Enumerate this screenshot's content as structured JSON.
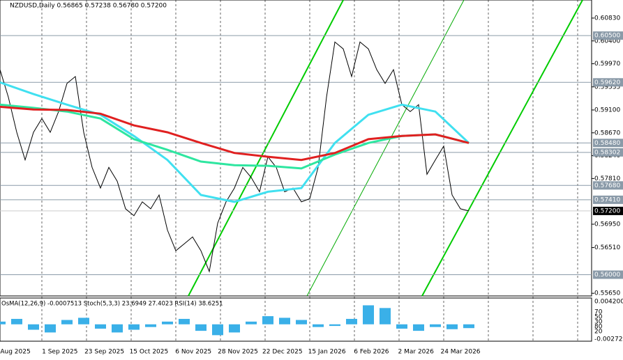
{
  "chart_data": {
    "type": "line",
    "title": "NZDUSD,Daily  0.56865 0.57238 0.56780 0.57200",
    "ylim": [
      0.556,
      0.6117
    ],
    "yticks": [
      {
        "value": 0.6083,
        "label": "0.60830"
      },
      {
        "value": 0.604,
        "label": "0.60400"
      },
      {
        "value": 0.5997,
        "label": "0.59970"
      },
      {
        "value": 0.59535,
        "label": "0.59535"
      },
      {
        "value": 0.591,
        "label": "0.59100"
      },
      {
        "value": 0.5867,
        "label": "0.58670"
      },
      {
        "value": 0.5824,
        "label": "0.58240"
      },
      {
        "value": 0.5781,
        "label": "0.57810"
      },
      {
        "value": 0.5695,
        "label": "0.56950"
      },
      {
        "value": 0.5651,
        "label": "0.56510"
      },
      {
        "value": 0.5565,
        "label": "0.55650"
      }
    ],
    "price_levels": [
      {
        "value": 0.605,
        "label": "0.60500"
      },
      {
        "value": 0.5962,
        "label": "0.59620"
      },
      {
        "value": 0.5848,
        "label": "0.58480"
      },
      {
        "value": 0.58302,
        "label": "0.58302"
      },
      {
        "value": 0.5768,
        "label": "0.57680"
      },
      {
        "value": 0.5741,
        "label": "0.57410"
      },
      {
        "value": 0.56,
        "label": "0.56000"
      }
    ],
    "last_price": {
      "value": 0.572,
      "label": "0.57200"
    },
    "x_labels": [
      "Aug 2025",
      "1 Sep 2025",
      "23 Sep 2025",
      "15 Oct 2025",
      "6 Nov 2025",
      "28 Nov 2025",
      "22 Dec 2025",
      "15 Jan 2026",
      "6 Feb 2026",
      "2 Mar 2026",
      "24 Mar 2026"
    ],
    "series": [
      {
        "name": "Close",
        "color": "#000000",
        "values": [
          0.5986,
          0.5934,
          0.5868,
          0.5816,
          0.5868,
          0.5894,
          0.5868,
          0.5907,
          0.596,
          0.5973,
          0.5868,
          0.5802,
          0.5763,
          0.5802,
          0.5776,
          0.5724,
          0.5711,
          0.5737,
          0.5724,
          0.575,
          0.5684,
          0.5645,
          0.5658,
          0.5671,
          0.5645,
          0.5606,
          0.5697,
          0.5737,
          0.5763,
          0.5802,
          0.5783,
          0.5756,
          0.5822,
          0.5802,
          0.5756,
          0.5763,
          0.5737,
          0.5743,
          0.5802,
          0.5934,
          0.6038,
          0.6025,
          0.5973,
          0.6038,
          0.6025,
          0.5986,
          0.596,
          0.5986,
          0.592,
          0.5907,
          0.592,
          0.5789,
          0.5816,
          0.5842,
          0.575,
          0.5724,
          0.572
        ]
      },
      {
        "name": "MA fast",
        "color": "#40e0f0",
        "values": [
          0.5962,
          0.594,
          0.592,
          0.5901,
          0.5861,
          0.5816,
          0.575,
          0.5737,
          0.5756,
          0.5763,
          0.5848,
          0.5901,
          0.592,
          0.5907,
          0.5848
        ]
      },
      {
        "name": "MA medium",
        "color": "#2ee6a0",
        "values": [
          0.592,
          0.5914,
          0.5907,
          0.5894,
          0.5855,
          0.5835,
          0.5813,
          0.5806,
          0.5805,
          0.58,
          0.5826,
          0.5848,
          0.5861,
          0.5864,
          0.5848
        ]
      },
      {
        "name": "MA slow",
        "color": "#e02020",
        "values": [
          0.5916,
          0.5911,
          0.591,
          0.5903,
          0.5881,
          0.5868,
          0.5848,
          0.5829,
          0.5822,
          0.5816,
          0.5829,
          0.5855,
          0.5861,
          0.5864,
          0.5848
        ]
      }
    ],
    "indicator": {
      "title": "OsMA(12,26,9) -0.0007513  Stoch(5,3,3) 23.6949 27.4023  RSI(14) 38.6251",
      "ylim": [
        -0.002725,
        0.0042
      ],
      "yticks": [
        {
          "value": 0.0042,
          "label": "0.004200"
        },
        {
          "value": -0.002725,
          "label": "-0.002725"
        }
      ],
      "levels": [
        70,
        50,
        30,
        80,
        20
      ],
      "osma": [
        0.0005,
        0.001,
        -0.001,
        -0.0015,
        0.0008,
        0.0012,
        -0.0008,
        -0.0015,
        -0.001,
        -0.0005,
        0.0005,
        0.001,
        -0.0012,
        -0.002,
        -0.0015,
        0.0005,
        0.0015,
        0.0012,
        0.0008,
        -0.0005,
        -0.0003,
        0.001,
        0.0035,
        0.003,
        -0.0008,
        -0.0012,
        -0.0005,
        -0.0009,
        -0.0007
      ]
    }
  }
}
